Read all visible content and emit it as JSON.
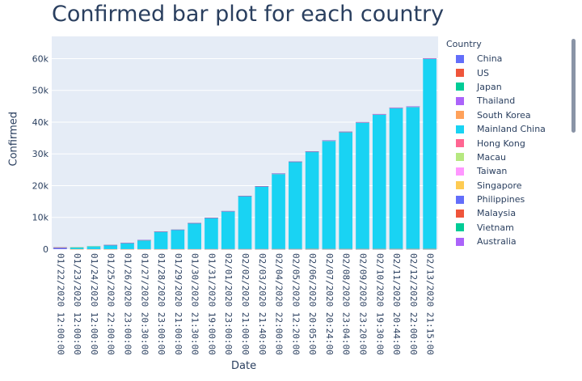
{
  "chart_data": {
    "type": "bar",
    "stacked": true,
    "title": "Confirmed bar plot for each country",
    "xlabel": "Date",
    "ylabel": "Confirmed",
    "ylim": [
      0,
      67000
    ],
    "yticks": [
      0,
      10000,
      20000,
      30000,
      40000,
      50000,
      60000
    ],
    "ytick_labels": [
      "0",
      "10k",
      "20k",
      "30k",
      "40k",
      "50k",
      "60k"
    ],
    "legend_title": "Country",
    "legend_position": "right",
    "categories": [
      "01/22/2020 12:00:00",
      "01/23/2020 12:00:00",
      "01/24/2020 12:00:00",
      "01/25/2020 22:00:00",
      "01/26/2020 23:00:00",
      "01/27/2020 20:30:00",
      "01/28/2020 23:00:00",
      "01/29/2020 21:00:00",
      "01/30/2020 21:30:00",
      "01/31/2020 19:00:00",
      "02/01/2020 23:00:00",
      "02/02/2020 21:00:00",
      "02/03/2020 21:40:00",
      "02/04/2020 22:00:00",
      "02/05/2020 12:20:00",
      "02/06/2020 20:05:00",
      "02/07/2020 20:24:00",
      "02/08/2020 23:04:00",
      "02/09/2020 23:20:00",
      "02/10/2020 19:30:00",
      "02/11/2020 20:44:00",
      "02/12/2020 22:00:00",
      "02/13/2020 21:15:00"
    ],
    "series": [
      {
        "name": "China",
        "color": "#636efa",
        "values": [
          547,
          0,
          0,
          0,
          0,
          0,
          0,
          0,
          0,
          0,
          0,
          0,
          0,
          0,
          0,
          0,
          0,
          0,
          0,
          0,
          0,
          0,
          0
        ]
      },
      {
        "name": "US",
        "color": "#ef553b",
        "values": [
          1,
          1,
          2,
          2,
          5,
          5,
          5,
          5,
          6,
          7,
          8,
          11,
          11,
          11,
          11,
          12,
          12,
          12,
          12,
          13,
          13,
          13,
          15
        ]
      },
      {
        "name": "Japan",
        "color": "#00cc96",
        "values": [
          2,
          1,
          2,
          2,
          4,
          4,
          7,
          7,
          11,
          15,
          20,
          20,
          20,
          22,
          22,
          45,
          25,
          25,
          26,
          26,
          26,
          28,
          28
        ]
      },
      {
        "name": "Thailand",
        "color": "#ab63fa",
        "values": [
          2,
          3,
          5,
          7,
          8,
          8,
          14,
          14,
          14,
          19,
          19,
          19,
          19,
          25,
          25,
          25,
          25,
          32,
          32,
          32,
          33,
          33,
          33
        ]
      },
      {
        "name": "South Korea",
        "color": "#ffa15a",
        "values": [
          1,
          1,
          2,
          2,
          3,
          4,
          4,
          4,
          4,
          11,
          12,
          15,
          15,
          16,
          19,
          23,
          24,
          24,
          25,
          27,
          28,
          28,
          28
        ]
      },
      {
        "name": "Mainland China",
        "color": "#19d3f3",
        "values": [
          0,
          540,
          860,
          1283,
          1974,
          2843,
          5494,
          6070,
          8124,
          9783,
          11871,
          16607,
          19693,
          23680,
          27409,
          30553,
          34075,
          36778,
          39790,
          42306,
          44327,
          44699,
          59832
        ]
      },
      {
        "name": "Hong Kong",
        "color": "#ff6692",
        "values": [
          0,
          0,
          0,
          5,
          8,
          8,
          8,
          10,
          10,
          12,
          13,
          15,
          15,
          17,
          21,
          24,
          25,
          26,
          29,
          38,
          49,
          50,
          53
        ]
      },
      {
        "name": "Macau",
        "color": "#b6e880",
        "values": [
          0,
          1,
          2,
          2,
          5,
          6,
          7,
          7,
          7,
          7,
          8,
          8,
          8,
          10,
          10,
          10,
          10,
          10,
          10,
          10,
          10,
          10,
          10
        ]
      },
      {
        "name": "Taiwan",
        "color": "#ff97ff",
        "values": [
          0,
          1,
          3,
          3,
          4,
          5,
          8,
          8,
          9,
          10,
          10,
          10,
          10,
          11,
          11,
          16,
          16,
          17,
          18,
          18,
          18,
          18,
          18
        ]
      },
      {
        "name": "Singapore",
        "color": "#fecb52",
        "values": [
          0,
          1,
          3,
          3,
          4,
          5,
          7,
          7,
          10,
          13,
          16,
          18,
          18,
          24,
          28,
          28,
          30,
          33,
          40,
          45,
          47,
          50,
          58
        ]
      },
      {
        "name": "Philippines",
        "color": "#636efa",
        "values": [
          0,
          0,
          0,
          0,
          0,
          0,
          0,
          0,
          1,
          1,
          1,
          2,
          2,
          2,
          2,
          3,
          3,
          3,
          3,
          3,
          3,
          3,
          3
        ]
      },
      {
        "name": "Malaysia",
        "color": "#ef553b",
        "values": [
          0,
          0,
          0,
          3,
          4,
          4,
          4,
          7,
          8,
          8,
          8,
          8,
          8,
          10,
          12,
          12,
          12,
          16,
          16,
          18,
          18,
          18,
          19
        ]
      },
      {
        "name": "Vietnam",
        "color": "#00cc96",
        "values": [
          0,
          2,
          2,
          2,
          2,
          2,
          2,
          2,
          2,
          2,
          6,
          6,
          8,
          8,
          10,
          12,
          13,
          13,
          14,
          15,
          15,
          15,
          16
        ]
      },
      {
        "name": "Australia",
        "color": "#ab63fa",
        "values": [
          0,
          0,
          0,
          4,
          4,
          5,
          5,
          6,
          9,
          9,
          12,
          12,
          12,
          13,
          13,
          14,
          15,
          15,
          15,
          15,
          15,
          15,
          15
        ]
      }
    ]
  }
}
